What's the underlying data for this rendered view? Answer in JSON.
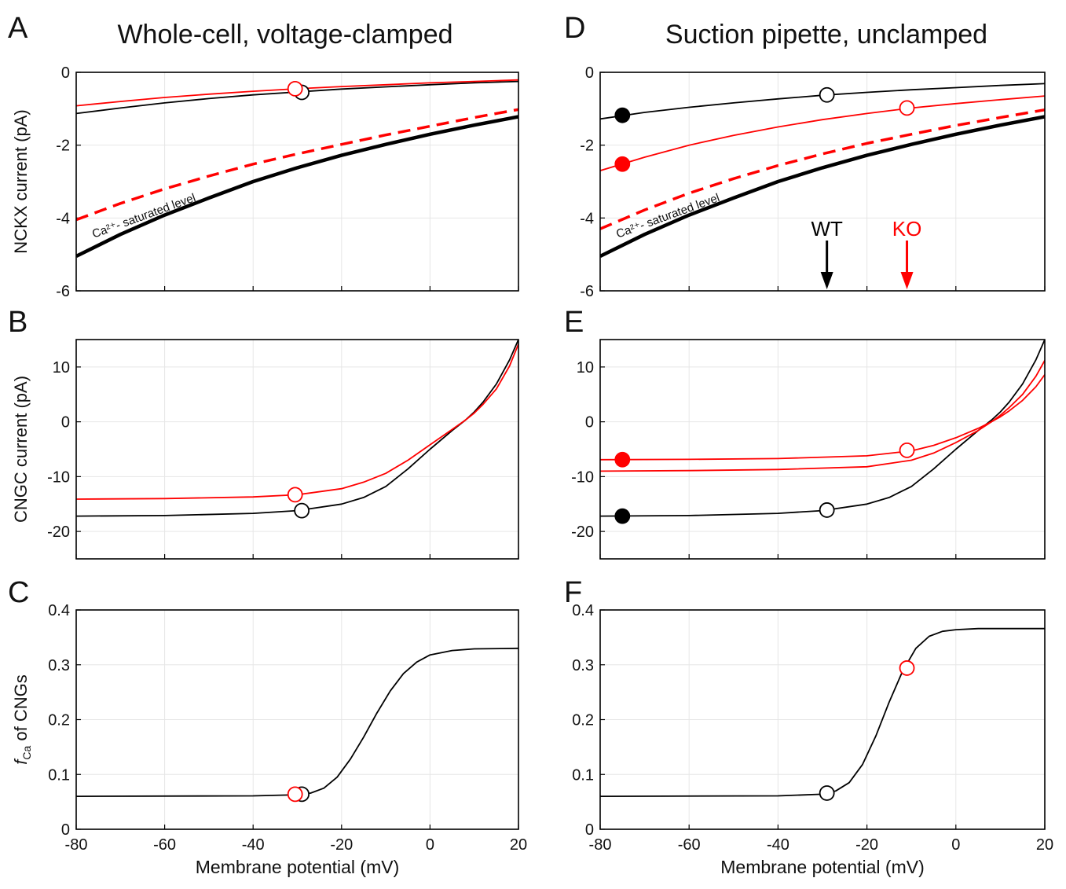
{
  "titles": {
    "left": "Whole-cell, voltage-clamped",
    "right": "Suction pipette, unclamped"
  },
  "colors": {
    "wt": "#000000",
    "ko": "#ff0000",
    "grid": "#e6e6e6"
  },
  "chart_data": [
    {
      "panel": "A",
      "type": "line",
      "ylabel": "NCKX current (pA)",
      "xlabel": "",
      "xlim": [
        -80,
        20
      ],
      "ylim": [
        -6,
        0
      ],
      "xticks": [
        -80,
        -60,
        -40,
        -20,
        0,
        20
      ],
      "yticks": [
        -6,
        -4,
        -2,
        0
      ],
      "show_xticklabels": false,
      "grid": true,
      "annotation": {
        "text": "Ca²⁺- saturated level",
        "x": -76,
        "y": -4.55
      },
      "series": [
        {
          "color": "#000000",
          "style": "thick",
          "x": [
            -80,
            -70,
            -60,
            -50,
            -40,
            -30,
            -20,
            -10,
            0,
            10,
            20
          ],
          "y": [
            -5.05,
            -4.45,
            -3.92,
            -3.45,
            -3.0,
            -2.62,
            -2.28,
            -1.98,
            -1.7,
            -1.45,
            -1.22
          ]
        },
        {
          "color": "#ff0000",
          "style": "dashed",
          "x": [
            -80,
            -70,
            -60,
            -50,
            -40,
            -30,
            -20,
            -10,
            0,
            10,
            20
          ],
          "y": [
            -4.05,
            -3.6,
            -3.2,
            -2.85,
            -2.52,
            -2.24,
            -1.98,
            -1.72,
            -1.48,
            -1.24,
            -1.02
          ]
        },
        {
          "color": "#000000",
          "style": "thin",
          "x": [
            -80,
            -70,
            -60,
            -50,
            -40,
            -30,
            -20,
            -10,
            0,
            10,
            20
          ],
          "y": [
            -1.13,
            -0.98,
            -0.84,
            -0.72,
            -0.62,
            -0.54,
            -0.46,
            -0.4,
            -0.34,
            -0.29,
            -0.25
          ]
        },
        {
          "color": "#ff0000",
          "style": "thin",
          "x": [
            -80,
            -70,
            -60,
            -50,
            -40,
            -30,
            -20,
            -10,
            0,
            10,
            20
          ],
          "y": [
            -0.92,
            -0.8,
            -0.69,
            -0.6,
            -0.52,
            -0.45,
            -0.39,
            -0.34,
            -0.29,
            -0.25,
            -0.21
          ]
        }
      ],
      "markers": [
        {
          "x": -29,
          "y": -0.55,
          "color": "#000000",
          "filled": false
        },
        {
          "x": -30.5,
          "y": -0.45,
          "color": "#ff0000",
          "filled": false
        }
      ]
    },
    {
      "panel": "B",
      "type": "line",
      "ylabel": "CNGC current (pA)",
      "xlabel": "",
      "xlim": [
        -80,
        20
      ],
      "ylim": [
        -25,
        15
      ],
      "xticks": [
        -80,
        -60,
        -40,
        -20,
        0,
        20
      ],
      "yticks": [
        -20,
        -10,
        0,
        10
      ],
      "show_xticklabels": false,
      "grid": true,
      "series": [
        {
          "color": "#000000",
          "style": "thin",
          "x": [
            -80,
            -60,
            -40,
            -30,
            -20,
            -15,
            -10,
            -5,
            0,
            5,
            8,
            10,
            12,
            15,
            18,
            20
          ],
          "y": [
            -17.2,
            -17.1,
            -16.7,
            -16.2,
            -15.0,
            -13.8,
            -11.8,
            -8.6,
            -5.0,
            -1.6,
            0.3,
            1.8,
            3.6,
            6.9,
            11.3,
            15.0
          ]
        },
        {
          "color": "#ff0000",
          "style": "thin",
          "x": [
            -80,
            -60,
            -40,
            -30,
            -20,
            -15,
            -10,
            -5,
            0,
            5,
            8,
            10,
            12,
            15,
            18,
            20
          ],
          "y": [
            -14.1,
            -14.0,
            -13.7,
            -13.3,
            -12.2,
            -11.0,
            -9.4,
            -7.0,
            -4.2,
            -1.4,
            0.3,
            1.6,
            3.2,
            6.0,
            10.2,
            14.2
          ]
        }
      ],
      "markers": [
        {
          "x": -29,
          "y": -16.2,
          "color": "#000000",
          "filled": false
        },
        {
          "x": -30.5,
          "y": -13.3,
          "color": "#ff0000",
          "filled": false
        }
      ]
    },
    {
      "panel": "C",
      "type": "line",
      "ylabel": "f_Ca of CNGs",
      "xlabel": "Membrane potential (mV)",
      "xlim": [
        -80,
        20
      ],
      "ylim": [
        0,
        0.4
      ],
      "xticks": [
        -80,
        -60,
        -40,
        -20,
        0,
        20
      ],
      "yticks": [
        0,
        0.1,
        0.2,
        0.3,
        0.4
      ],
      "show_xticklabels": true,
      "grid": true,
      "series": [
        {
          "color": "#000000",
          "style": "thin",
          "x": [
            -80,
            -40,
            -30,
            -27,
            -24,
            -21,
            -18,
            -15,
            -12,
            -9,
            -6,
            -3,
            0,
            5,
            10,
            20
          ],
          "y": [
            0.06,
            0.061,
            0.063,
            0.066,
            0.075,
            0.095,
            0.128,
            0.168,
            0.212,
            0.252,
            0.284,
            0.305,
            0.318,
            0.326,
            0.329,
            0.33
          ]
        }
      ],
      "markers": [
        {
          "x": -29,
          "y": 0.064,
          "color": "#000000",
          "filled": false
        },
        {
          "x": -30.5,
          "y": 0.064,
          "color": "#ff0000",
          "filled": false
        }
      ]
    },
    {
      "panel": "D",
      "type": "line",
      "ylabel": "",
      "xlabel": "",
      "xlim": [
        -80,
        20
      ],
      "ylim": [
        -6,
        0
      ],
      "xticks": [
        -80,
        -60,
        -40,
        -20,
        0,
        20
      ],
      "yticks": [
        -6,
        -4,
        -2,
        0
      ],
      "show_xticklabels": false,
      "grid": true,
      "annotation": {
        "text": "Ca²⁺- saturated level",
        "x": -76,
        "y": -4.55
      },
      "arrows": [
        {
          "label": "WT",
          "x": -29,
          "color": "#000000"
        },
        {
          "label": "KO",
          "x": -11,
          "color": "#ff0000"
        }
      ],
      "series": [
        {
          "color": "#000000",
          "style": "thick",
          "x": [
            -80,
            -70,
            -60,
            -50,
            -40,
            -30,
            -20,
            -10,
            0,
            10,
            20
          ],
          "y": [
            -5.05,
            -4.45,
            -3.92,
            -3.45,
            -3.0,
            -2.62,
            -2.28,
            -1.98,
            -1.7,
            -1.45,
            -1.22
          ]
        },
        {
          "color": "#ff0000",
          "style": "dashed",
          "x": [
            -80,
            -70,
            -60,
            -50,
            -40,
            -30,
            -20,
            -10,
            0,
            10,
            20
          ],
          "y": [
            -4.3,
            -3.78,
            -3.32,
            -2.92,
            -2.56,
            -2.24,
            -1.95,
            -1.7,
            -1.46,
            -1.24,
            -1.03
          ]
        },
        {
          "color": "#000000",
          "style": "thin",
          "x": [
            -80,
            -70,
            -60,
            -50,
            -40,
            -30,
            -20,
            -10,
            0,
            10,
            20
          ],
          "y": [
            -1.28,
            -1.1,
            -0.96,
            -0.84,
            -0.73,
            -0.63,
            -0.55,
            -0.48,
            -0.42,
            -0.36,
            -0.31
          ]
        },
        {
          "color": "#ff0000",
          "style": "thin",
          "x": [
            -80,
            -70,
            -60,
            -50,
            -40,
            -30,
            -20,
            -10,
            0,
            10,
            20
          ],
          "y": [
            -2.7,
            -2.33,
            -2.0,
            -1.73,
            -1.5,
            -1.3,
            -1.13,
            -0.98,
            -0.86,
            -0.75,
            -0.65
          ]
        }
      ],
      "markers": [
        {
          "x": -75,
          "y": -1.18,
          "color": "#000000",
          "filled": true
        },
        {
          "x": -29,
          "y": -0.62,
          "color": "#000000",
          "filled": false
        },
        {
          "x": -75,
          "y": -2.52,
          "color": "#ff0000",
          "filled": true
        },
        {
          "x": -11,
          "y": -0.98,
          "color": "#ff0000",
          "filled": false
        }
      ]
    },
    {
      "panel": "E",
      "type": "line",
      "ylabel": "",
      "xlabel": "",
      "xlim": [
        -80,
        20
      ],
      "ylim": [
        -25,
        15
      ],
      "xticks": [
        -80,
        -60,
        -40,
        -20,
        0,
        20
      ],
      "yticks": [
        -20,
        -10,
        0,
        10
      ],
      "show_xticklabels": false,
      "grid": true,
      "series": [
        {
          "color": "#000000",
          "style": "thin",
          "x": [
            -80,
            -60,
            -40,
            -30,
            -20,
            -15,
            -10,
            -5,
            0,
            5,
            8,
            10,
            12,
            15,
            18,
            20
          ],
          "y": [
            -17.2,
            -17.1,
            -16.7,
            -16.2,
            -15.0,
            -13.8,
            -11.8,
            -8.6,
            -5.0,
            -1.6,
            0.3,
            1.8,
            3.6,
            6.9,
            11.3,
            15.0
          ]
        },
        {
          "color": "#ff0000",
          "style": "thin",
          "x": [
            -80,
            -60,
            -40,
            -20,
            -10,
            -5,
            0,
            5,
            8,
            10,
            12,
            15,
            18,
            20
          ],
          "y": [
            -6.9,
            -6.85,
            -6.7,
            -6.2,
            -5.3,
            -4.3,
            -2.9,
            -1.2,
            0.0,
            0.9,
            2.0,
            3.9,
            6.4,
            8.6
          ]
        },
        {
          "color": "#ff0000",
          "style": "thin",
          "x": [
            -80,
            -60,
            -40,
            -20,
            -10,
            -5,
            0,
            5,
            8,
            10,
            12,
            15,
            18,
            20
          ],
          "y": [
            -9.0,
            -8.9,
            -8.7,
            -8.2,
            -7.0,
            -5.7,
            -3.8,
            -1.6,
            0.0,
            1.2,
            2.6,
            5.0,
            8.3,
            11.2
          ]
        }
      ],
      "markers": [
        {
          "x": -75,
          "y": -6.9,
          "color": "#ff0000",
          "filled": true
        },
        {
          "x": -11,
          "y": -5.2,
          "color": "#ff0000",
          "filled": false
        },
        {
          "x": -75,
          "y": -17.2,
          "color": "#000000",
          "filled": true
        },
        {
          "x": -29,
          "y": -16.1,
          "color": "#000000",
          "filled": false
        }
      ]
    },
    {
      "panel": "F",
      "type": "line",
      "ylabel": "",
      "xlabel": "Membrane potential (mV)",
      "xlim": [
        -80,
        20
      ],
      "ylim": [
        0,
        0.4
      ],
      "xticks": [
        -80,
        -60,
        -40,
        -20,
        0,
        20
      ],
      "yticks": [
        0,
        0.1,
        0.2,
        0.3,
        0.4
      ],
      "show_xticklabels": true,
      "grid": true,
      "series": [
        {
          "color": "#000000",
          "style": "thin",
          "x": [
            -80,
            -40,
            -30,
            -27,
            -24,
            -21,
            -18,
            -15,
            -12,
            -9,
            -6,
            -3,
            0,
            5,
            10,
            20
          ],
          "y": [
            0.06,
            0.061,
            0.064,
            0.07,
            0.085,
            0.118,
            0.17,
            0.232,
            0.288,
            0.33,
            0.352,
            0.361,
            0.364,
            0.366,
            0.366,
            0.366
          ]
        }
      ],
      "markers": [
        {
          "x": -29,
          "y": 0.066,
          "color": "#000000",
          "filled": false
        },
        {
          "x": -11,
          "y": 0.294,
          "color": "#ff0000",
          "filled": false
        }
      ]
    }
  ]
}
